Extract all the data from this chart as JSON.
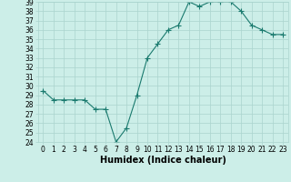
{
  "x": [
    0,
    1,
    2,
    3,
    4,
    5,
    6,
    7,
    8,
    9,
    10,
    11,
    12,
    13,
    14,
    15,
    16,
    17,
    18,
    19,
    20,
    21,
    22,
    23
  ],
  "y": [
    29.5,
    28.5,
    28.5,
    28.5,
    28.5,
    27.5,
    27.5,
    24.0,
    25.5,
    29.0,
    33.0,
    34.5,
    36.0,
    36.5,
    39.0,
    38.5,
    39.0,
    39.0,
    39.0,
    38.0,
    36.5,
    36.0,
    35.5,
    35.5
  ],
  "xlabel": "Humidex (Indice chaleur)",
  "ylim": [
    24,
    39
  ],
  "xlim": [
    -0.5,
    23.5
  ],
  "yticks": [
    24,
    25,
    26,
    27,
    28,
    29,
    30,
    31,
    32,
    33,
    34,
    35,
    36,
    37,
    38,
    39
  ],
  "xticks": [
    0,
    1,
    2,
    3,
    4,
    5,
    6,
    7,
    8,
    9,
    10,
    11,
    12,
    13,
    14,
    15,
    16,
    17,
    18,
    19,
    20,
    21,
    22,
    23
  ],
  "line_color": "#1a7a6e",
  "marker": "+",
  "marker_size": 4,
  "bg_color": "#cceee8",
  "grid_color": "#aad4ce",
  "tick_fontsize": 5.5,
  "label_fontsize": 7,
  "linewidth": 0.8
}
